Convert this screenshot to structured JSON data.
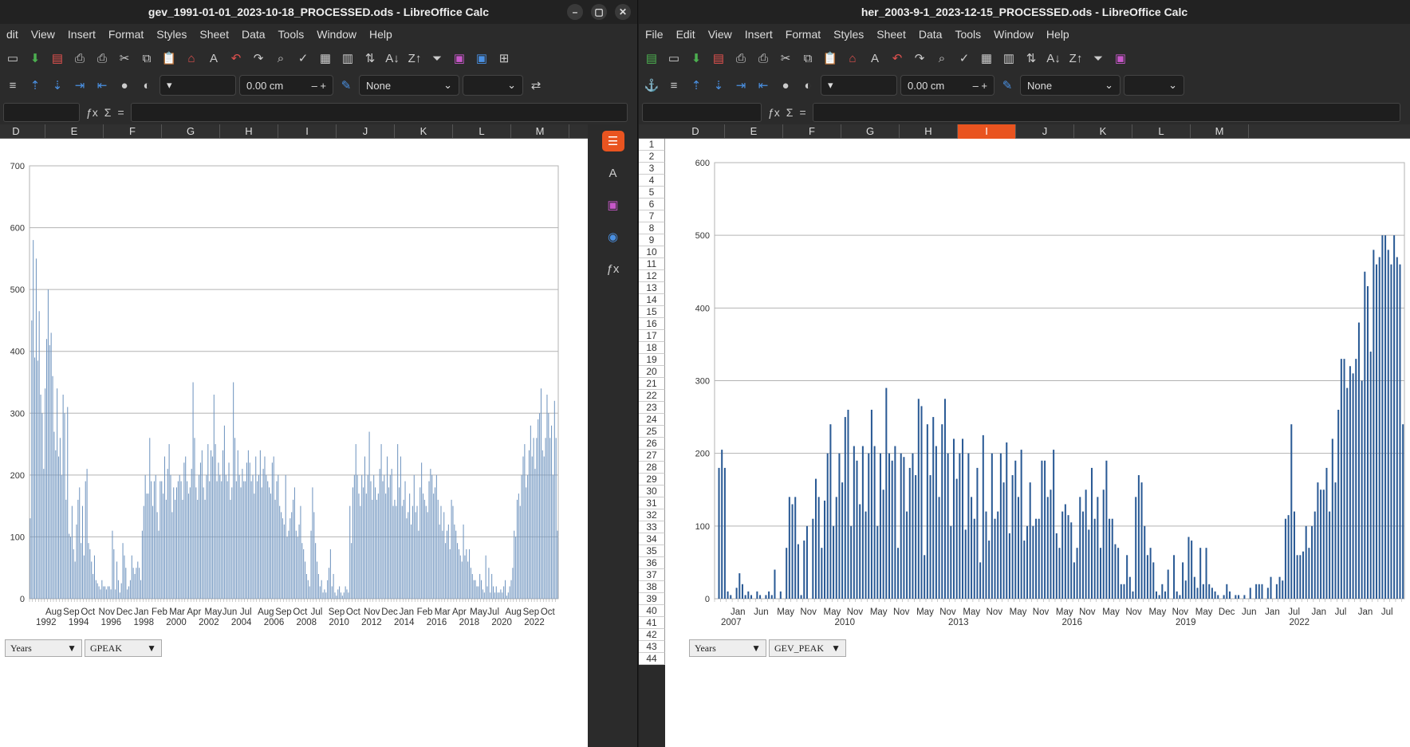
{
  "left": {
    "title": "gev_1991-01-01_2023-10-18_PROCESSED.ods - LibreOffice Calc",
    "menu": [
      "dit",
      "View",
      "Insert",
      "Format",
      "Styles",
      "Sheet",
      "Data",
      "Tools",
      "Window",
      "Help"
    ],
    "indent_value": "0.00 cm",
    "border_style": "None",
    "columns": [
      "D",
      "E",
      "F",
      "G",
      "H",
      "I",
      "J",
      "K",
      "L",
      "M"
    ],
    "pivot_fields": [
      "Years",
      "GPEAK"
    ]
  },
  "right": {
    "title": "her_2003-9-1_2023-12-15_PROCESSED.ods - LibreOffice Calc",
    "menu": [
      "File",
      "Edit",
      "View",
      "Insert",
      "Format",
      "Styles",
      "Sheet",
      "Data",
      "Tools",
      "Window",
      "Help"
    ],
    "indent_value": "0.00 cm",
    "border_style": "None",
    "columns": [
      "D",
      "E",
      "F",
      "G",
      "H",
      "I",
      "J",
      "K",
      "L",
      "M"
    ],
    "selected_column": "I",
    "rows": [
      "1",
      "2",
      "3",
      "4",
      "5",
      "6",
      "7",
      "8",
      "9",
      "10",
      "11",
      "12",
      "13",
      "14",
      "15",
      "16",
      "17",
      "18",
      "19",
      "20",
      "21",
      "22",
      "23",
      "24",
      "25",
      "26",
      "27",
      "28",
      "29",
      "30",
      "31",
      "32",
      "33",
      "34",
      "35",
      "36",
      "37",
      "38",
      "39",
      "40",
      "41",
      "42",
      "43",
      "44"
    ],
    "pivot_fields": [
      "Years",
      "GEV_PEAK"
    ]
  },
  "sidebar_icons": [
    "properties-icon",
    "styles-icon",
    "gallery-icon",
    "navigator-icon",
    "functions-icon"
  ],
  "chart_data": [
    {
      "type": "bar",
      "color": "#6f94bf",
      "ylim": [
        0,
        700
      ],
      "yticks": [
        0,
        100,
        200,
        300,
        400,
        500,
        600,
        700
      ],
      "month_labels": [
        "Aug",
        "Sep",
        "Oct",
        "Nov",
        "Dec",
        "Jan",
        "Feb",
        "Mar",
        "Apr",
        "May",
        "Jun",
        "Jul",
        "Aug",
        "Sep",
        "Oct",
        "Jul",
        "Sep",
        "Oct",
        "Nov",
        "Dec",
        "Jan",
        "Feb",
        "Mar",
        "Apr",
        "May",
        "Jul",
        "Aug",
        "Sep",
        "Oct"
      ],
      "year_labels": [
        "1992",
        "1994",
        "1996",
        "1998",
        "2000",
        "2002",
        "2004",
        "2006",
        "2008",
        "2010",
        "2012",
        "2014",
        "2016",
        "2018",
        "2020",
        "2022"
      ],
      "values": [
        130,
        450,
        580,
        390,
        550,
        385,
        465,
        330,
        300,
        210,
        340,
        420,
        500,
        410,
        430,
        360,
        270,
        240,
        340,
        230,
        260,
        200,
        330,
        300,
        160,
        310,
        105,
        100,
        150,
        80,
        60,
        120,
        160,
        180,
        90,
        150,
        70,
        190,
        210,
        90,
        80,
        60,
        40,
        70,
        30,
        25,
        20,
        15,
        30,
        20,
        20,
        15,
        20,
        20,
        15,
        110,
        80,
        15,
        60,
        30,
        10,
        25,
        90,
        70,
        50,
        15,
        20,
        30,
        70,
        50,
        40,
        50,
        60,
        50,
        30,
        110,
        150,
        200,
        170,
        170,
        260,
        190,
        150,
        190,
        200,
        140,
        110,
        190,
        190,
        170,
        230,
        160,
        210,
        250,
        200,
        140,
        180,
        160,
        180,
        190,
        200,
        190,
        160,
        220,
        230,
        190,
        170,
        180,
        210,
        350,
        260,
        180,
        160,
        200,
        220,
        240,
        180,
        160,
        200,
        250,
        190,
        240,
        230,
        330,
        250,
        190,
        220,
        200,
        190,
        240,
        280,
        200,
        190,
        220,
        160,
        180,
        350,
        260,
        190,
        240,
        200,
        180,
        210,
        190,
        190,
        220,
        240,
        220,
        190,
        200,
        170,
        230,
        190,
        200,
        240,
        180,
        210,
        230,
        200,
        190,
        180,
        170,
        220,
        230,
        160,
        190,
        200,
        150,
        140,
        130,
        120,
        200,
        100,
        110,
        130,
        140,
        160,
        180,
        110,
        100,
        120,
        150,
        90,
        80,
        60,
        40,
        30,
        20,
        110,
        180,
        140,
        90,
        60,
        40,
        20,
        30,
        10,
        15,
        10,
        30,
        50,
        80,
        20,
        40,
        10,
        5,
        15,
        20,
        10,
        5,
        10,
        20,
        15,
        10,
        150,
        90,
        180,
        200,
        250,
        200,
        170,
        150,
        200,
        180,
        230,
        170,
        200,
        270,
        190,
        160,
        200,
        180,
        160,
        170,
        210,
        250,
        190,
        200,
        170,
        230,
        180,
        200,
        210,
        150,
        160,
        150,
        250,
        180,
        230,
        150,
        160,
        190,
        130,
        140,
        170,
        120,
        150,
        200,
        140,
        150,
        110,
        180,
        220,
        170,
        160,
        150,
        140,
        190,
        210,
        200,
        170,
        180,
        200,
        160,
        120,
        150,
        110,
        140,
        90,
        110,
        120,
        80,
        160,
        150,
        120,
        110,
        90,
        80,
        70,
        60,
        120,
        70,
        80,
        60,
        80,
        50,
        40,
        30,
        30,
        20,
        20,
        40,
        30,
        15,
        10,
        70,
        20,
        50,
        10,
        40,
        20,
        10,
        20,
        10,
        10,
        15,
        10,
        20,
        30,
        5,
        10,
        20,
        30,
        50,
        110,
        100,
        160,
        170,
        150,
        200,
        230,
        250,
        180,
        200,
        240,
        280,
        230,
        260,
        210,
        260,
        290,
        300,
        340,
        240,
        230,
        260,
        330,
        300,
        260,
        280,
        200,
        320,
        260,
        110
      ]
    },
    {
      "type": "bar",
      "color": "#2a5a95",
      "ylim": [
        0,
        600
      ],
      "yticks": [
        0,
        100,
        200,
        300,
        400,
        500,
        600
      ],
      "month_labels": [
        "Jan",
        "Jun",
        "May",
        "Nov",
        "May",
        "Nov",
        "May",
        "Nov",
        "May",
        "Nov",
        "May",
        "Nov",
        "May",
        "Nov",
        "May",
        "Nov",
        "May",
        "Nov",
        "May",
        "Nov",
        "May",
        "Dec",
        "Jun",
        "Jan",
        "Jul",
        "Jan",
        "Jul",
        "Jan",
        "Jul"
      ],
      "year_labels": [
        "2007",
        "2010",
        "2013",
        "2016",
        "2019",
        "2022"
      ],
      "values": [
        0,
        180,
        205,
        180,
        10,
        5,
        0,
        15,
        35,
        20,
        5,
        10,
        5,
        0,
        10,
        5,
        0,
        5,
        10,
        5,
        40,
        0,
        10,
        0,
        70,
        140,
        130,
        140,
        75,
        5,
        80,
        100,
        0,
        110,
        165,
        140,
        70,
        135,
        200,
        240,
        100,
        140,
        200,
        160,
        250,
        260,
        100,
        210,
        190,
        130,
        210,
        120,
        200,
        260,
        210,
        100,
        200,
        150,
        290,
        200,
        190,
        210,
        70,
        200,
        195,
        120,
        180,
        200,
        170,
        275,
        265,
        60,
        240,
        170,
        250,
        210,
        140,
        240,
        275,
        200,
        100,
        220,
        165,
        200,
        220,
        95,
        200,
        140,
        110,
        180,
        50,
        225,
        120,
        80,
        200,
        110,
        120,
        200,
        160,
        215,
        90,
        170,
        190,
        140,
        205,
        80,
        100,
        160,
        100,
        110,
        110,
        190,
        190,
        140,
        150,
        205,
        90,
        70,
        120,
        130,
        115,
        105,
        50,
        70,
        140,
        120,
        150,
        95,
        180,
        110,
        140,
        70,
        150,
        190,
        110,
        110,
        75,
        70,
        20,
        20,
        60,
        30,
        10,
        140,
        170,
        160,
        100,
        60,
        70,
        50,
        10,
        5,
        20,
        10,
        40,
        0,
        60,
        10,
        5,
        50,
        25,
        85,
        80,
        30,
        15,
        70,
        20,
        70,
        20,
        15,
        10,
        5,
        0,
        5,
        20,
        10,
        0,
        5,
        5,
        0,
        5,
        0,
        15,
        0,
        20,
        20,
        20,
        0,
        15,
        30,
        0,
        20,
        30,
        25,
        110,
        115,
        240,
        120,
        60,
        60,
        65,
        100,
        70,
        100,
        120,
        160,
        150,
        150,
        180,
        120,
        220,
        160,
        260,
        330,
        330,
        290,
        320,
        310,
        330,
        380,
        300,
        450,
        430,
        340,
        480,
        460,
        470,
        500,
        500,
        480,
        460,
        500,
        470,
        460,
        240
      ]
    }
  ]
}
